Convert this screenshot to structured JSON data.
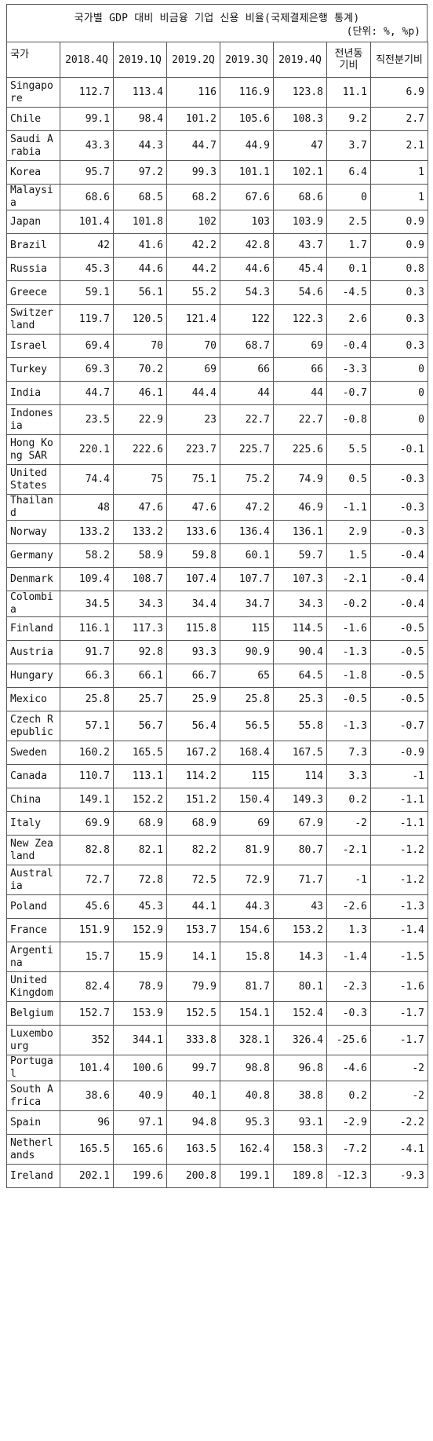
{
  "title": "국가별 GDP 대비 비금융 기업 신용 비율(국제결제은행 통계)",
  "unit": "(단위: %, %p)",
  "columns": [
    "국가",
    "2018.4Q",
    "2019.1Q",
    "2019.2Q",
    "2019.3Q",
    "2019.4Q",
    "전년동기비",
    "직전분기비"
  ],
  "rows": [
    {
      "country": "Singapore",
      "values": [
        "112.7",
        "113.4",
        "116",
        "116.9",
        "123.8",
        "11.1",
        "6.9"
      ]
    },
    {
      "country": "Chile",
      "values": [
        "99.1",
        "98.4",
        "101.2",
        "105.6",
        "108.3",
        "9.2",
        "2.7"
      ]
    },
    {
      "country": "Saudi Arabia",
      "values": [
        "43.3",
        "44.3",
        "44.7",
        "44.9",
        "47",
        "3.7",
        "2.1"
      ]
    },
    {
      "country": "Korea",
      "values": [
        "95.7",
        "97.2",
        "99.3",
        "101.1",
        "102.1",
        "6.4",
        "1"
      ]
    },
    {
      "country": "Malaysia",
      "values": [
        "68.6",
        "68.5",
        "68.2",
        "67.6",
        "68.6",
        "0",
        "1"
      ]
    },
    {
      "country": "Japan",
      "values": [
        "101.4",
        "101.8",
        "102",
        "103",
        "103.9",
        "2.5",
        "0.9"
      ]
    },
    {
      "country": "Brazil",
      "values": [
        "42",
        "41.6",
        "42.2",
        "42.8",
        "43.7",
        "1.7",
        "0.9"
      ]
    },
    {
      "country": "Russia",
      "values": [
        "45.3",
        "44.6",
        "44.2",
        "44.6",
        "45.4",
        "0.1",
        "0.8"
      ]
    },
    {
      "country": "Greece",
      "values": [
        "59.1",
        "56.1",
        "55.2",
        "54.3",
        "54.6",
        "-4.5",
        "0.3"
      ]
    },
    {
      "country": "Switzerland",
      "values": [
        "119.7",
        "120.5",
        "121.4",
        "122",
        "122.3",
        "2.6",
        "0.3"
      ]
    },
    {
      "country": "Israel",
      "values": [
        "69.4",
        "70",
        "70",
        "68.7",
        "69",
        "-0.4",
        "0.3"
      ]
    },
    {
      "country": "Turkey",
      "values": [
        "69.3",
        "70.2",
        "69",
        "66",
        "66",
        "-3.3",
        "0"
      ]
    },
    {
      "country": "India",
      "values": [
        "44.7",
        "46.1",
        "44.4",
        "44",
        "44",
        "-0.7",
        "0"
      ]
    },
    {
      "country": "Indonesia",
      "values": [
        "23.5",
        "22.9",
        "23",
        "22.7",
        "22.7",
        "-0.8",
        "0"
      ]
    },
    {
      "country": "Hong Kong SAR",
      "values": [
        "220.1",
        "222.6",
        "223.7",
        "225.7",
        "225.6",
        "5.5",
        "-0.1"
      ]
    },
    {
      "country": "United States",
      "values": [
        "74.4",
        "75",
        "75.1",
        "75.2",
        "74.9",
        "0.5",
        "-0.3"
      ]
    },
    {
      "country": "Thailand",
      "values": [
        "48",
        "47.6",
        "47.6",
        "47.2",
        "46.9",
        "-1.1",
        "-0.3"
      ]
    },
    {
      "country": "Norway",
      "values": [
        "133.2",
        "133.2",
        "133.6",
        "136.4",
        "136.1",
        "2.9",
        "-0.3"
      ]
    },
    {
      "country": "Germany",
      "values": [
        "58.2",
        "58.9",
        "59.8",
        "60.1",
        "59.7",
        "1.5",
        "-0.4"
      ]
    },
    {
      "country": "Denmark",
      "values": [
        "109.4",
        "108.7",
        "107.4",
        "107.7",
        "107.3",
        "-2.1",
        "-0.4"
      ]
    },
    {
      "country": "Colombia",
      "values": [
        "34.5",
        "34.3",
        "34.4",
        "34.7",
        "34.3",
        "-0.2",
        "-0.4"
      ]
    },
    {
      "country": "Finland",
      "values": [
        "116.1",
        "117.3",
        "115.8",
        "115",
        "114.5",
        "-1.6",
        "-0.5"
      ]
    },
    {
      "country": "Austria",
      "values": [
        "91.7",
        "92.8",
        "93.3",
        "90.9",
        "90.4",
        "-1.3",
        "-0.5"
      ]
    },
    {
      "country": "Hungary",
      "values": [
        "66.3",
        "66.1",
        "66.7",
        "65",
        "64.5",
        "-1.8",
        "-0.5"
      ]
    },
    {
      "country": "Mexico",
      "values": [
        "25.8",
        "25.7",
        "25.9",
        "25.8",
        "25.3",
        "-0.5",
        "-0.5"
      ]
    },
    {
      "country": "Czech Republic",
      "values": [
        "57.1",
        "56.7",
        "56.4",
        "56.5",
        "55.8",
        "-1.3",
        "-0.7"
      ]
    },
    {
      "country": "Sweden",
      "values": [
        "160.2",
        "165.5",
        "167.2",
        "168.4",
        "167.5",
        "7.3",
        "-0.9"
      ]
    },
    {
      "country": "Canada",
      "values": [
        "110.7",
        "113.1",
        "114.2",
        "115",
        "114",
        "3.3",
        "-1"
      ]
    },
    {
      "country": "China",
      "values": [
        "149.1",
        "152.2",
        "151.2",
        "150.4",
        "149.3",
        "0.2",
        "-1.1"
      ]
    },
    {
      "country": "Italy",
      "values": [
        "69.9",
        "68.9",
        "68.9",
        "69",
        "67.9",
        "-2",
        "-1.1"
      ]
    },
    {
      "country": "New Zealand",
      "values": [
        "82.8",
        "82.1",
        "82.2",
        "81.9",
        "80.7",
        "-2.1",
        "-1.2"
      ]
    },
    {
      "country": "Australia",
      "values": [
        "72.7",
        "72.8",
        "72.5",
        "72.9",
        "71.7",
        "-1",
        "-1.2"
      ]
    },
    {
      "country": "Poland",
      "values": [
        "45.6",
        "45.3",
        "44.1",
        "44.3",
        "43",
        "-2.6",
        "-1.3"
      ]
    },
    {
      "country": "France",
      "values": [
        "151.9",
        "152.9",
        "153.7",
        "154.6",
        "153.2",
        "1.3",
        "-1.4"
      ]
    },
    {
      "country": "Argentina",
      "values": [
        "15.7",
        "15.9",
        "14.1",
        "15.8",
        "14.3",
        "-1.4",
        "-1.5"
      ]
    },
    {
      "country": "United Kingdom",
      "values": [
        "82.4",
        "78.9",
        "79.9",
        "81.7",
        "80.1",
        "-2.3",
        "-1.6"
      ]
    },
    {
      "country": "Belgium",
      "values": [
        "152.7",
        "153.9",
        "152.5",
        "154.1",
        "152.4",
        "-0.3",
        "-1.7"
      ]
    },
    {
      "country": "Luxembourg",
      "values": [
        "352",
        "344.1",
        "333.8",
        "328.1",
        "326.4",
        "-25.6",
        "-1.7"
      ]
    },
    {
      "country": "Portugal",
      "values": [
        "101.4",
        "100.6",
        "99.7",
        "98.8",
        "96.8",
        "-4.6",
        "-2"
      ]
    },
    {
      "country": "South Africa",
      "values": [
        "38.6",
        "40.9",
        "40.1",
        "40.8",
        "38.8",
        "0.2",
        "-2"
      ]
    },
    {
      "country": "Spain",
      "values": [
        "96",
        "97.1",
        "94.8",
        "95.3",
        "93.1",
        "-2.9",
        "-2.2"
      ]
    },
    {
      "country": "Netherlands",
      "values": [
        "165.5",
        "165.6",
        "163.5",
        "162.4",
        "158.3",
        "-7.2",
        "-4.1"
      ]
    },
    {
      "country": "Ireland",
      "values": [
        "202.1",
        "199.6",
        "200.8",
        "199.1",
        "189.8",
        "-12.3",
        "-9.3"
      ]
    }
  ]
}
